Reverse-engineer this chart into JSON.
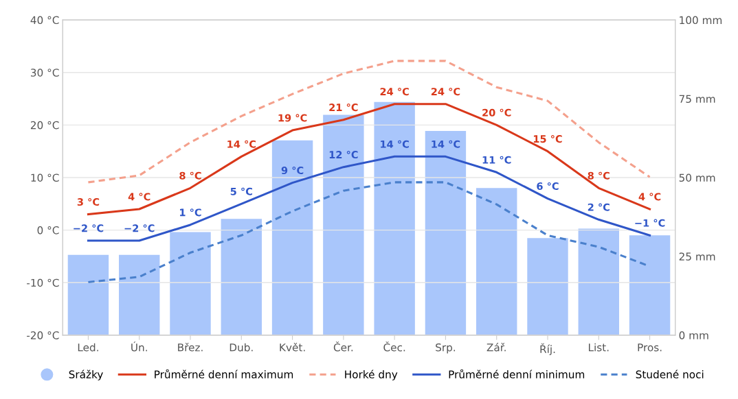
{
  "chart_data": {
    "type": "line",
    "categories": [
      "Led.",
      "Ún.",
      "Břez.",
      "Dub.",
      "Květ.",
      "Čer.",
      "Čec.",
      "Srp.",
      "Zář.",
      "Říj.",
      "List.",
      "Pros."
    ],
    "series": [
      {
        "name": "Srážky",
        "type": "bar",
        "axis": "y2",
        "color": "#a9c6fb",
        "values": [
          25.5,
          25.5,
          32.7,
          36.9,
          61.8,
          69.9,
          74,
          64.8,
          46.7,
          30.8,
          33.8,
          31.7
        ]
      },
      {
        "name": "Průměrné denní maximum",
        "color": "#d9381a",
        "line_style": "solid",
        "values": [
          3,
          4,
          8,
          14,
          19,
          21,
          24,
          24,
          20,
          15,
          8,
          4
        ],
        "value_labels": [
          "3 °C",
          "4 °C",
          "8 °C",
          "14 °C",
          "19 °C",
          "21 °C",
          "24 °C",
          "24 °C",
          "20 °C",
          "15 °C",
          "8 °C",
          "4 °C"
        ]
      },
      {
        "name": "Horké dny",
        "color": "#f4a08c",
        "line_style": "dashed",
        "values": [
          9.1,
          10.4,
          16.7,
          21.7,
          25.9,
          29.8,
          32.2,
          32.2,
          27.2,
          24.6,
          16.7,
          10.1
        ]
      },
      {
        "name": "Průměrné denní minimum",
        "color": "#2f56c8",
        "line_style": "solid",
        "values": [
          -2,
          -2,
          1,
          5,
          9,
          12,
          14,
          14,
          11,
          6,
          2,
          -1
        ],
        "value_labels": [
          "−2 °C",
          "−2 °C",
          "1 °C",
          "5 °C",
          "9 °C",
          "12 °C",
          "14 °C",
          "14 °C",
          "11 °C",
          "6 °C",
          "2 °C",
          "−1 °C"
        ]
      },
      {
        "name": "Studené noci",
        "color": "#4a80cc",
        "line_style": "dashed",
        "values": [
          -9.9,
          -8.9,
          -4.3,
          -1.0,
          3.6,
          7.5,
          9.1,
          9.1,
          4.9,
          -1.0,
          -3.2,
          -6.9
        ]
      }
    ],
    "ylim": [
      -20,
      40
    ],
    "yticks": [
      {
        "value": -20,
        "label": "-20 °C"
      },
      {
        "value": -10,
        "label": "-10 °C"
      },
      {
        "value": 0,
        "label": "0 °C"
      },
      {
        "value": 10,
        "label": "10 °C"
      },
      {
        "value": 20,
        "label": "20 °C"
      },
      {
        "value": 30,
        "label": "30 °C"
      },
      {
        "value": 40,
        "label": "40 °C"
      }
    ],
    "y2lim": [
      0,
      100
    ],
    "y2ticks": [
      {
        "value": 0,
        "label": "0 mm"
      },
      {
        "value": 25,
        "label": "25 mm"
      },
      {
        "value": 50,
        "label": "50 mm"
      },
      {
        "value": 75,
        "label": "75 mm"
      },
      {
        "value": 100,
        "label": "100 mm"
      }
    ],
    "grid": "y",
    "legend": "bottom",
    "marker": "none"
  }
}
